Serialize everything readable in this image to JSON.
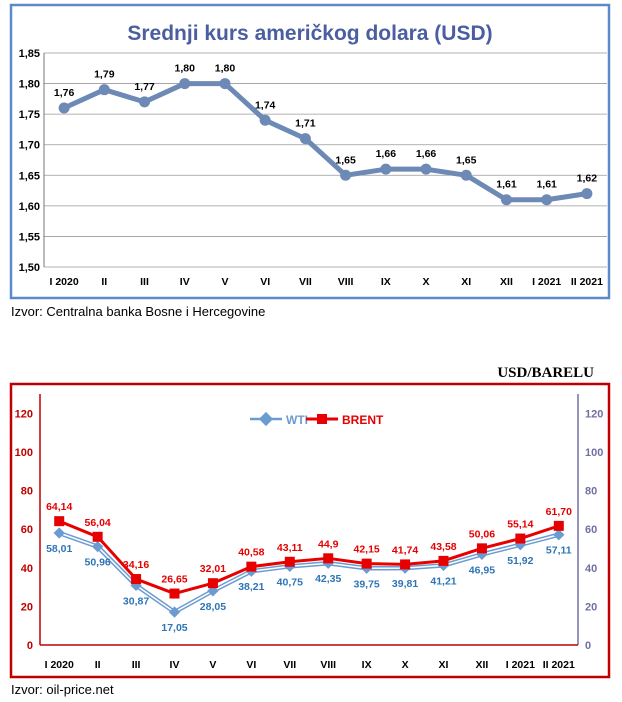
{
  "chart_data": [
    {
      "type": "line",
      "title": "Srednji kurs američkog dolara (USD)",
      "categories": [
        "I 2020",
        "II",
        "III",
        "IV",
        "V",
        "VI",
        "VII",
        "VIII",
        "IX",
        "X",
        "XI",
        "XII",
        "I 2021",
        "II 2021"
      ],
      "values": [
        1.76,
        1.79,
        1.77,
        1.8,
        1.8,
        1.74,
        1.71,
        1.65,
        1.66,
        1.66,
        1.65,
        1.61,
        1.61,
        1.62
      ],
      "value_labels": [
        "1,76",
        "1,79",
        "1,77",
        "1,80",
        "1,80",
        "1,74",
        "1,71",
        "1,65",
        "1,66",
        "1,66",
        "1,65",
        "1,61",
        "1,61",
        "1,62"
      ],
      "ylim": [
        1.5,
        1.85
      ],
      "yticks": [
        "1,50",
        "1,55",
        "1,60",
        "1,65",
        "1,70",
        "1,75",
        "1,80",
        "1,85"
      ],
      "source": "Izvor: Centralna banka Bosne i Hercegovine",
      "colors": {
        "line": "#6d89b5",
        "frame": "#5b8ac9",
        "title": "#4b5fa0"
      }
    },
    {
      "type": "line",
      "title": "USD/BARELU",
      "categories": [
        "I 2020",
        "II",
        "III",
        "IV",
        "V",
        "VI",
        "VII",
        "VIII",
        "IX",
        "X",
        "XI",
        "XII",
        "I 2021",
        "II 2021"
      ],
      "series": [
        {
          "name": "WTI",
          "values": [
            58.01,
            50.96,
            30.87,
            17.05,
            28.05,
            38.21,
            40.75,
            42.35,
            39.75,
            39.81,
            41.21,
            46.95,
            51.92,
            57.11
          ],
          "value_labels": [
            "58,01",
            "50,96",
            "30,87",
            "17,05",
            "28,05",
            "38,21",
            "40,75",
            "42,35",
            "39,75",
            "39,81",
            "41,21",
            "46,95",
            "51,92",
            "57,11"
          ],
          "color": "#6b9bd1",
          "label_color": "#2e75b6"
        },
        {
          "name": "BRENT",
          "values": [
            64.14,
            56.04,
            34.16,
            26.65,
            32.01,
            40.58,
            43.11,
            44.9,
            42.15,
            41.74,
            43.58,
            50.06,
            55.14,
            61.7
          ],
          "value_labels": [
            "64,14",
            "56,04",
            "34,16",
            "26,65",
            "32,01",
            "40,58",
            "43,11",
            "44,9",
            "42,15",
            "41,74",
            "43,58",
            "50,06",
            "55,14",
            "61,70"
          ],
          "color": "#e60000",
          "label_color": "#e60000"
        }
      ],
      "ylim": [
        0,
        130
      ],
      "yticks_left": [
        "0",
        "20",
        "40",
        "60",
        "80",
        "100",
        "120"
      ],
      "yticks_right": [
        "0",
        "20",
        "40",
        "60",
        "80",
        "100",
        "120"
      ],
      "source": "Izvor: oil-price.net",
      "colors": {
        "frame": "#c00000",
        "left_ticks": "#c00000",
        "right_ticks": "#7070a0"
      }
    }
  ]
}
